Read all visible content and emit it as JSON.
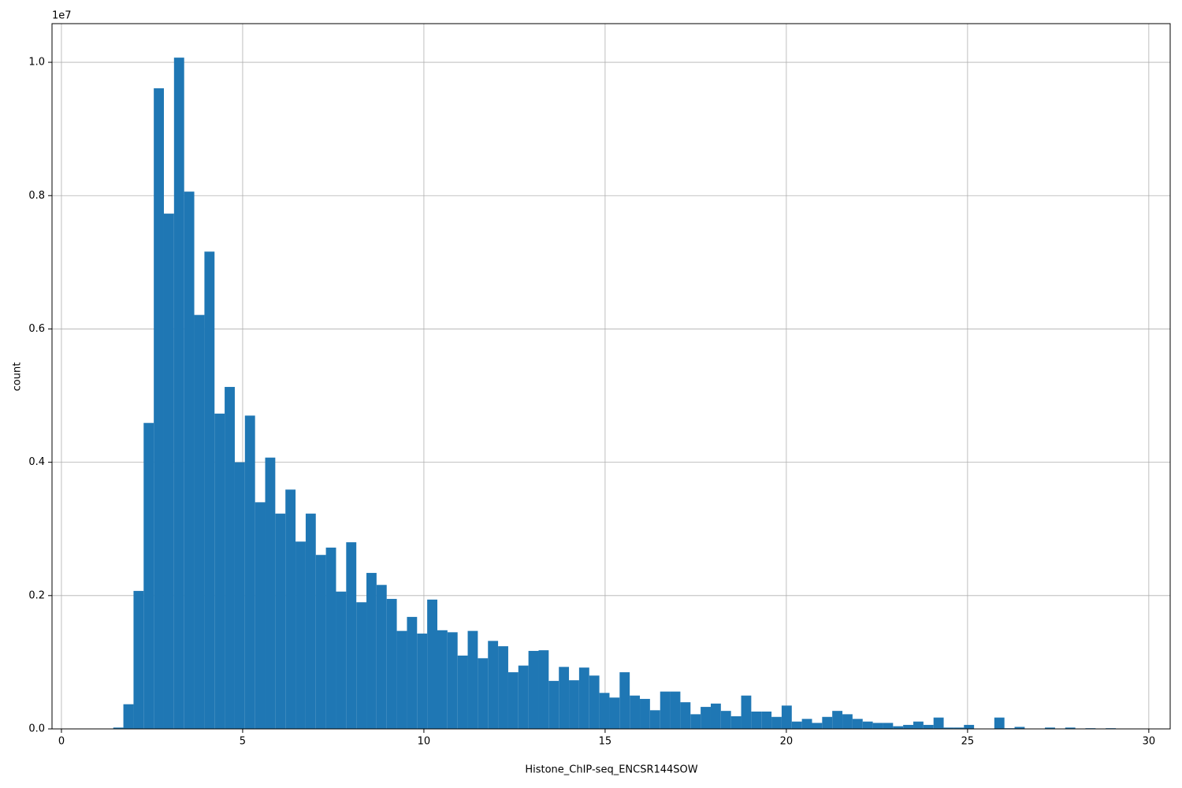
{
  "chart_data": {
    "type": "histogram",
    "xlabel": "Histone_ChIP-seq_ENCSR144SOW",
    "ylabel": "count",
    "y_offset_label": "1e7",
    "color": "#1f77b4",
    "grid": true,
    "xlim": [
      -0.26,
      30.59
    ],
    "ylim": [
      0,
      10580000
    ],
    "xticks": [
      0,
      5,
      10,
      15,
      20,
      25,
      30
    ],
    "yticks": [
      {
        "value": 0,
        "label": "0.0"
      },
      {
        "value": 2000000,
        "label": "0.2"
      },
      {
        "value": 4000000,
        "label": "0.4"
      },
      {
        "value": 6000000,
        "label": "0.6"
      },
      {
        "value": 8000000,
        "label": "0.8"
      },
      {
        "value": 10000000,
        "label": "1.0"
      }
    ],
    "bins": [
      1.43,
      1.709,
      1.989,
      2.268,
      2.548,
      2.827,
      3.106,
      3.386,
      3.665,
      3.945,
      4.224,
      4.503,
      4.783,
      5.062,
      5.342,
      5.621,
      5.9,
      6.18,
      6.459,
      6.739,
      7.018,
      7.297,
      7.577,
      7.856,
      8.136,
      8.415,
      8.694,
      8.974,
      9.253,
      9.533,
      9.812,
      10.091,
      10.371,
      10.65,
      10.93,
      11.209,
      11.488,
      11.768,
      12.047,
      12.327,
      12.606,
      12.885,
      13.165,
      13.444,
      13.724,
      14.003,
      14.282,
      14.562,
      14.841,
      15.121,
      15.4,
      15.679,
      15.959,
      16.238,
      16.518,
      16.797,
      17.076,
      17.356,
      17.635,
      17.915,
      18.194,
      18.473,
      18.753,
      19.032,
      19.312,
      19.591,
      19.87,
      20.15,
      20.429,
      20.709,
      20.988,
      21.267,
      21.547,
      21.826,
      22.106,
      22.385,
      22.664,
      22.944,
      23.223,
      23.503,
      23.782,
      24.061,
      24.341,
      24.62,
      24.9,
      25.179,
      25.458,
      25.738,
      26.017,
      26.297,
      26.576,
      26.855,
      27.135,
      27.414,
      27.694,
      27.973,
      28.252,
      28.532,
      28.811,
      29.091,
      29.37
    ],
    "counts": [
      20000,
      370000,
      2070000,
      4590000,
      9610000,
      7730000,
      10070000,
      8060000,
      6210000,
      7160000,
      4730000,
      5130000,
      4000000,
      4700000,
      3400000,
      4070000,
      3230000,
      3590000,
      2810000,
      3230000,
      2610000,
      2720000,
      2060000,
      2800000,
      1900000,
      2340000,
      2160000,
      1950000,
      1470000,
      1680000,
      1430000,
      1940000,
      1480000,
      1450000,
      1100000,
      1470000,
      1060000,
      1320000,
      1240000,
      850000,
      950000,
      1170000,
      1180000,
      720000,
      930000,
      730000,
      920000,
      800000,
      540000,
      470000,
      850000,
      500000,
      450000,
      280000,
      560000,
      560000,
      400000,
      220000,
      330000,
      380000,
      270000,
      190000,
      500000,
      260000,
      260000,
      180000,
      350000,
      110000,
      150000,
      90000,
      180000,
      270000,
      220000,
      150000,
      110000,
      90000,
      90000,
      40000,
      60000,
      110000,
      60000,
      170000,
      20000,
      20000,
      60000,
      0,
      0,
      170000,
      10000,
      30000,
      0,
      0,
      20000,
      0,
      20000,
      0,
      10000,
      0,
      10000,
      0
    ]
  }
}
